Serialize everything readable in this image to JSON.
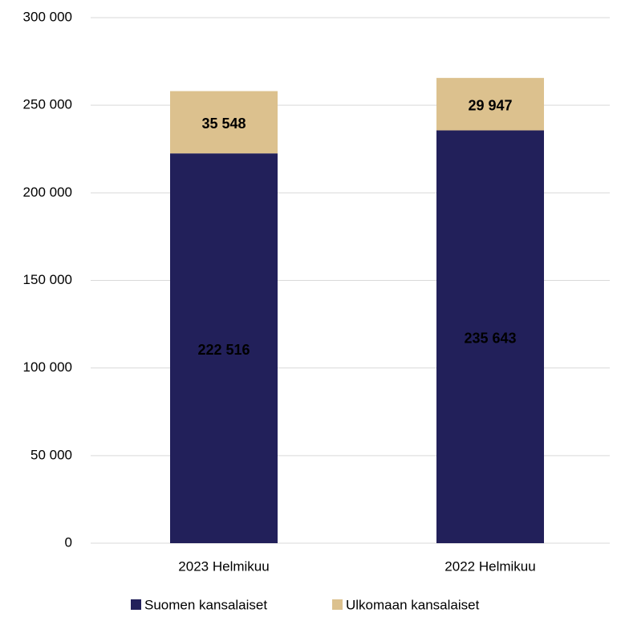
{
  "chart_data": {
    "type": "stacked_bar",
    "categories": [
      "2023 Helmikuu",
      "2022 Helmikuu"
    ],
    "series": [
      {
        "name": "Suomen kansalaiset",
        "color": "#22205a",
        "values": [
          222516,
          235643
        ],
        "value_labels": [
          "222 516",
          "235 643"
        ],
        "label_color": "#ffffff"
      },
      {
        "name": "Ulkomaan kansalaiset",
        "color": "#dcc18e",
        "values": [
          35548,
          29947
        ],
        "value_labels": [
          "35 548",
          "29 947"
        ],
        "label_color": "#000000"
      }
    ],
    "ylim": [
      0,
      300000
    ],
    "yticks": [
      {
        "value": 0,
        "label": "0"
      },
      {
        "value": 50000,
        "label": "50 000"
      },
      {
        "value": 100000,
        "label": "100 000"
      },
      {
        "value": 150000,
        "label": "150 000"
      },
      {
        "value": 200000,
        "label": "200 000"
      },
      {
        "value": 250000,
        "label": "250 000"
      },
      {
        "value": 300000,
        "label": "300 000"
      }
    ],
    "grid": true,
    "legend": "bottom"
  }
}
